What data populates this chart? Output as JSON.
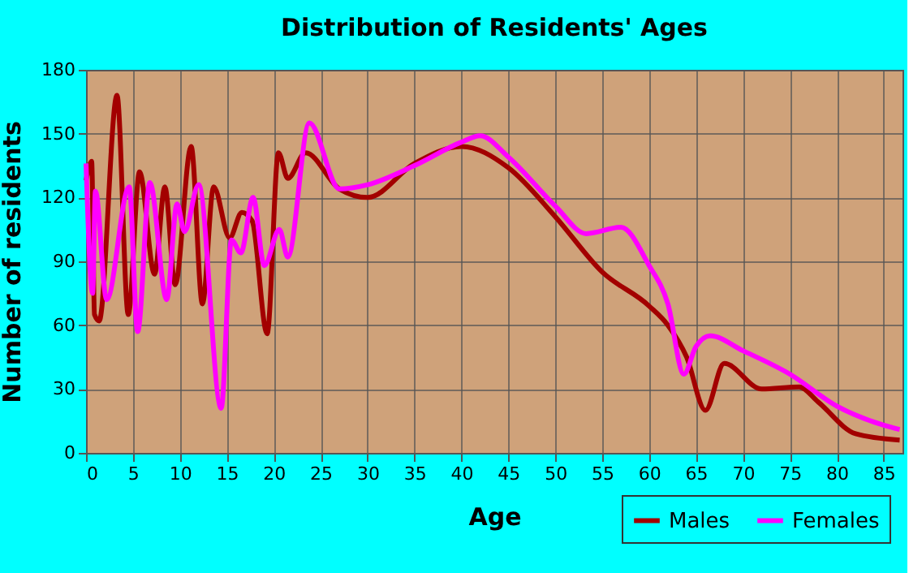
{
  "chart_data": {
    "type": "line",
    "title": "Distribution of Residents' Ages",
    "xlabel": "Age",
    "ylabel": "Number of residents",
    "xlim": [
      0,
      87
    ],
    "ylim": [
      0,
      180
    ],
    "xticks": [
      0,
      5,
      10,
      15,
      20,
      25,
      30,
      35,
      40,
      45,
      50,
      55,
      60,
      65,
      70,
      75,
      80,
      85
    ],
    "yticks": [
      0,
      30,
      60,
      90,
      120,
      150,
      180
    ],
    "grid": true,
    "legend": "bottom right",
    "line_style": "solid",
    "marker": "none",
    "series": [
      {
        "name": "Males",
        "color": "#a30000",
        "x": [
          0,
          0.6,
          0.9,
          1.4,
          3.3,
          4.5,
          5.7,
          7.3,
          8.4,
          9.5,
          11.2,
          12.4,
          13.6,
          15.3,
          16.6,
          17.7,
          19.3,
          20.5,
          21.5,
          23.4,
          27,
          30,
          35,
          40,
          45,
          50,
          55,
          60,
          62,
          64,
          66,
          68,
          72,
          76,
          78,
          82,
          86.7
        ],
        "values": [
          128,
          137,
          65,
          62,
          168,
          65,
          132,
          84,
          125,
          79,
          144,
          70,
          125,
          101,
          113,
          109,
          56,
          141,
          129,
          141,
          124,
          120,
          136,
          144,
          134,
          111,
          85,
          69,
          60,
          45,
          20,
          42,
          30,
          31,
          24,
          9,
          6
        ]
      },
      {
        "name": "Females",
        "color": "#ff00ff",
        "x": [
          0,
          0.7,
          1,
          2.2,
          4.6,
          5.5,
          6.8,
          8.6,
          9.7,
          10.5,
          12,
          14.4,
          15.5,
          16.5,
          17.8,
          19,
          20.6,
          21.5,
          23.8,
          27,
          30,
          35,
          40,
          42,
          45,
          50,
          53.3,
          57,
          60,
          62,
          63.7,
          65,
          66.5,
          70,
          75,
          80,
          85,
          86.7
        ],
        "values": [
          136,
          75,
          123,
          72,
          125,
          57,
          127,
          72,
          117,
          104,
          126,
          21,
          100,
          94,
          120,
          88,
          105,
          92,
          155,
          124,
          126,
          135,
          146,
          149,
          139,
          116,
          103,
          106,
          88,
          70,
          37,
          50,
          55,
          48,
          37,
          22,
          13,
          11
        ]
      }
    ]
  }
}
